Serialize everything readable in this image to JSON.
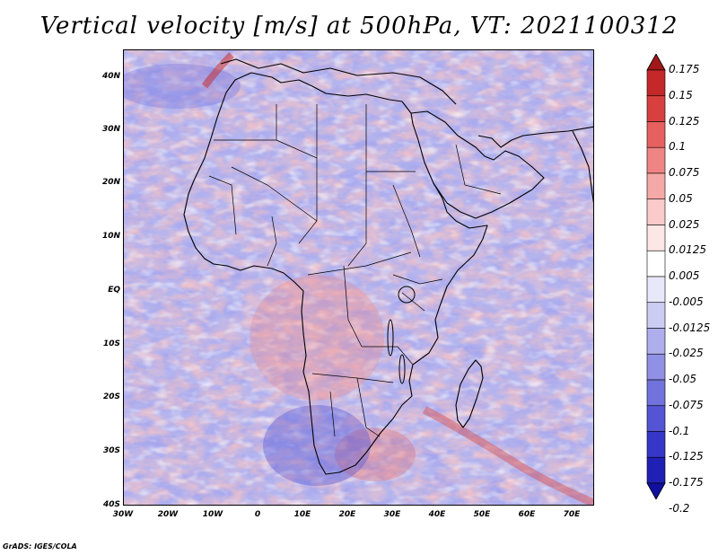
{
  "title": "Vertical velocity [m/s] at 500hPa, VT: 2021100312",
  "credit": "GrADS: IGES/COLA",
  "map": {
    "lat_range": [
      -40,
      45
    ],
    "lon_range": [
      -30,
      75
    ],
    "lat_ticks": [
      "40N",
      "30N",
      "20N",
      "10N",
      "EQ",
      "10S",
      "20S",
      "30S",
      "40S"
    ],
    "lat_tick_values": [
      40,
      30,
      20,
      10,
      0,
      -10,
      -20,
      -30,
      -40
    ],
    "lon_ticks": [
      "30W",
      "20W",
      "10W",
      "0",
      "10E",
      "20E",
      "30E",
      "40E",
      "50E",
      "60E",
      "70E"
    ],
    "lon_tick_values": [
      -30,
      -20,
      -10,
      0,
      10,
      20,
      30,
      40,
      50,
      60,
      70
    ],
    "base_color": "#b8b8ef",
    "coast_color": "#000000"
  },
  "colorbar": {
    "labels": [
      "0.175",
      "0.15",
      "0.125",
      "0.1",
      "0.075",
      "0.05",
      "0.025",
      "0.0125",
      "0.005",
      "-0.005",
      "-0.0125",
      "-0.025",
      "-0.05",
      "-0.075",
      "-0.1",
      "-0.125",
      "-0.175",
      "-0.2"
    ],
    "colors": [
      "#a01818",
      "#c42828",
      "#d84040",
      "#e66060",
      "#ee8484",
      "#f5a8a8",
      "#fbcaca",
      "#fde6e6",
      "#ffffff",
      "#e8e8fb",
      "#ccccf3",
      "#aeaeec",
      "#9090e4",
      "#7272dc",
      "#5454d4",
      "#3636c8",
      "#2020b4",
      "#1010a0"
    ]
  }
}
